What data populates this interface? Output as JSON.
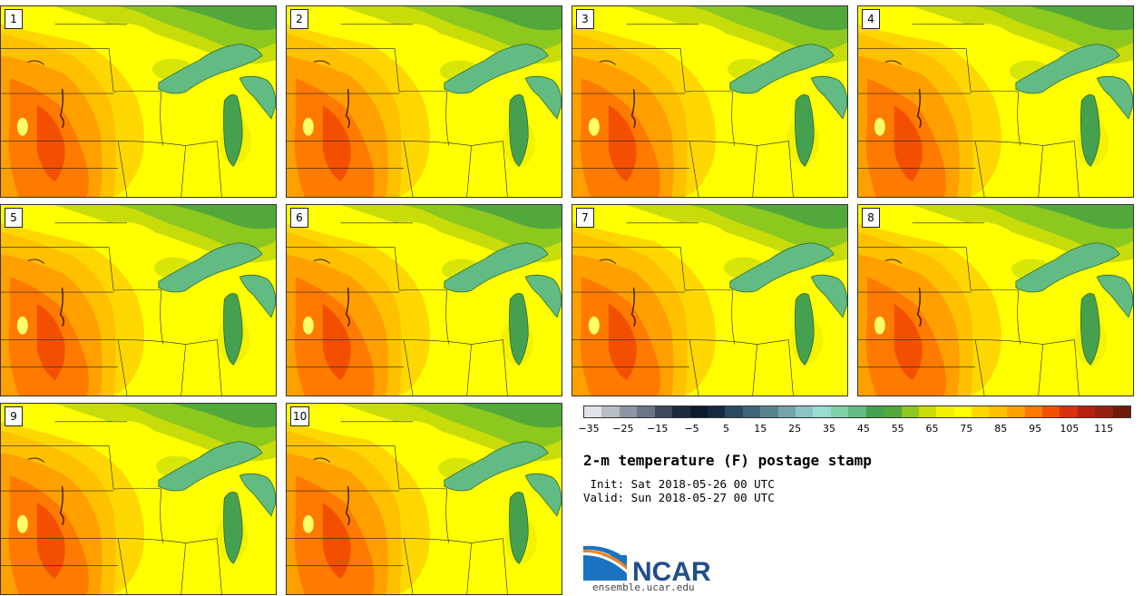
{
  "stamps": [
    {
      "label": "1"
    },
    {
      "label": "2"
    },
    {
      "label": "3"
    },
    {
      "label": "4"
    },
    {
      "label": "5"
    },
    {
      "label": "6"
    },
    {
      "label": "7"
    },
    {
      "label": "8"
    },
    {
      "label": "9"
    },
    {
      "label": "10"
    }
  ],
  "colorbar": {
    "colors": [
      "#dfe3e8",
      "#b8bec6",
      "#8d96a2",
      "#6a7585",
      "#3c4a5c",
      "#1c2a3f",
      "#0c1a30",
      "#152a42",
      "#2a4a60",
      "#3f6678",
      "#58838f",
      "#74a4aa",
      "#8cc4c3",
      "#98dcd2",
      "#7fcfa8",
      "#62bb82",
      "#45a050",
      "#52a83a",
      "#8cc81e",
      "#c8dc0a",
      "#f0f000",
      "#ffff00",
      "#ffd700",
      "#ffc000",
      "#ffa000",
      "#ff7a00",
      "#f25000",
      "#d83010",
      "#b82010",
      "#962010",
      "#6e1a0c"
    ],
    "ticks": [
      "−35",
      "−25",
      "−15",
      "−5",
      "5",
      "15",
      "25",
      "35",
      "45",
      "55",
      "65",
      "75",
      "85",
      "95",
      "105",
      "115"
    ]
  },
  "title": "2-m temperature (F) postage stamp",
  "init_line": " Init: Sat 2018-05-26 00 UTC",
  "valid_line": "Valid: Sun 2018-05-27 00 UTC",
  "logo_text": "NCAR",
  "url": "ensemble.ucar.edu"
}
